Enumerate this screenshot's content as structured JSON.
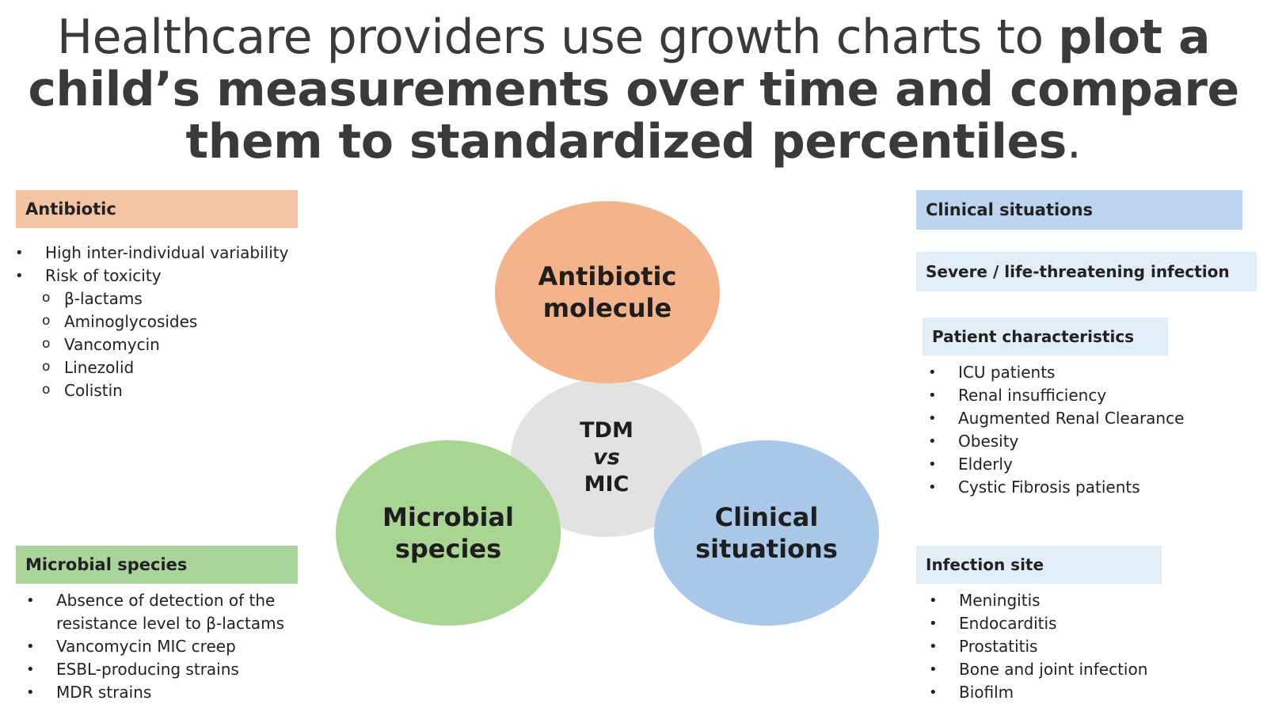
{
  "headline": {
    "part1": "Healthcare providers use growth charts to ",
    "part2": "plot a child’s measurements over time and compare them to standardized percentiles",
    "part3": "."
  },
  "colors": {
    "antibiotic": "#f4c3a3",
    "antibiotic_circle": "#f3b48c",
    "microbial": "#a9d59b",
    "microbial_circle": "#a8d591",
    "clinical_header": "#bcd4ee",
    "clinical_circle": "#a9c7e8",
    "light_blue": "#e3edf8",
    "center": "#e2e2e2"
  },
  "left": {
    "antibiotic_header": "Antibiotic",
    "antibiotic_items": [
      {
        "text": "High inter-individual variability",
        "level": 1
      },
      {
        "text": "Risk of toxicity",
        "level": 1
      },
      {
        "text": "β-lactams",
        "level": 2
      },
      {
        "text": "Aminoglycosides",
        "level": 2
      },
      {
        "text": "Vancomycin",
        "level": 2
      },
      {
        "text": "Linezolid",
        "level": 2
      },
      {
        "text": "Colistin",
        "level": 2
      }
    ],
    "microbial_header": "Microbial species",
    "microbial_items": [
      "Absence of detection of the resistance level to β-lactams",
      "Vancomycin MIC creep",
      "ESBL-producing strains",
      "MDR strains"
    ]
  },
  "center": {
    "top_line1": "Antibiotic",
    "top_line2": "molecule",
    "mid_line1": "TDM",
    "mid_line2": "vs",
    "mid_line3": "MIC",
    "left_line1": "Microbial",
    "left_line2": "species",
    "right_line1": "Clinical",
    "right_line2": "situations"
  },
  "right": {
    "clinical_header": "Clinical situations",
    "severe_header": "Severe / life-threatening infection",
    "patient_header": "Patient characteristics",
    "patient_items": [
      "ICU patients",
      "Renal insufficiency",
      "Augmented Renal Clearance",
      "Obesity",
      "Elderly",
      "Cystic Fibrosis patients"
    ],
    "infection_header": "Infection site",
    "infection_items": [
      "Meningitis",
      "Endocarditis",
      "Prostatitis",
      "Bone and joint infection",
      "Biofilm"
    ]
  }
}
